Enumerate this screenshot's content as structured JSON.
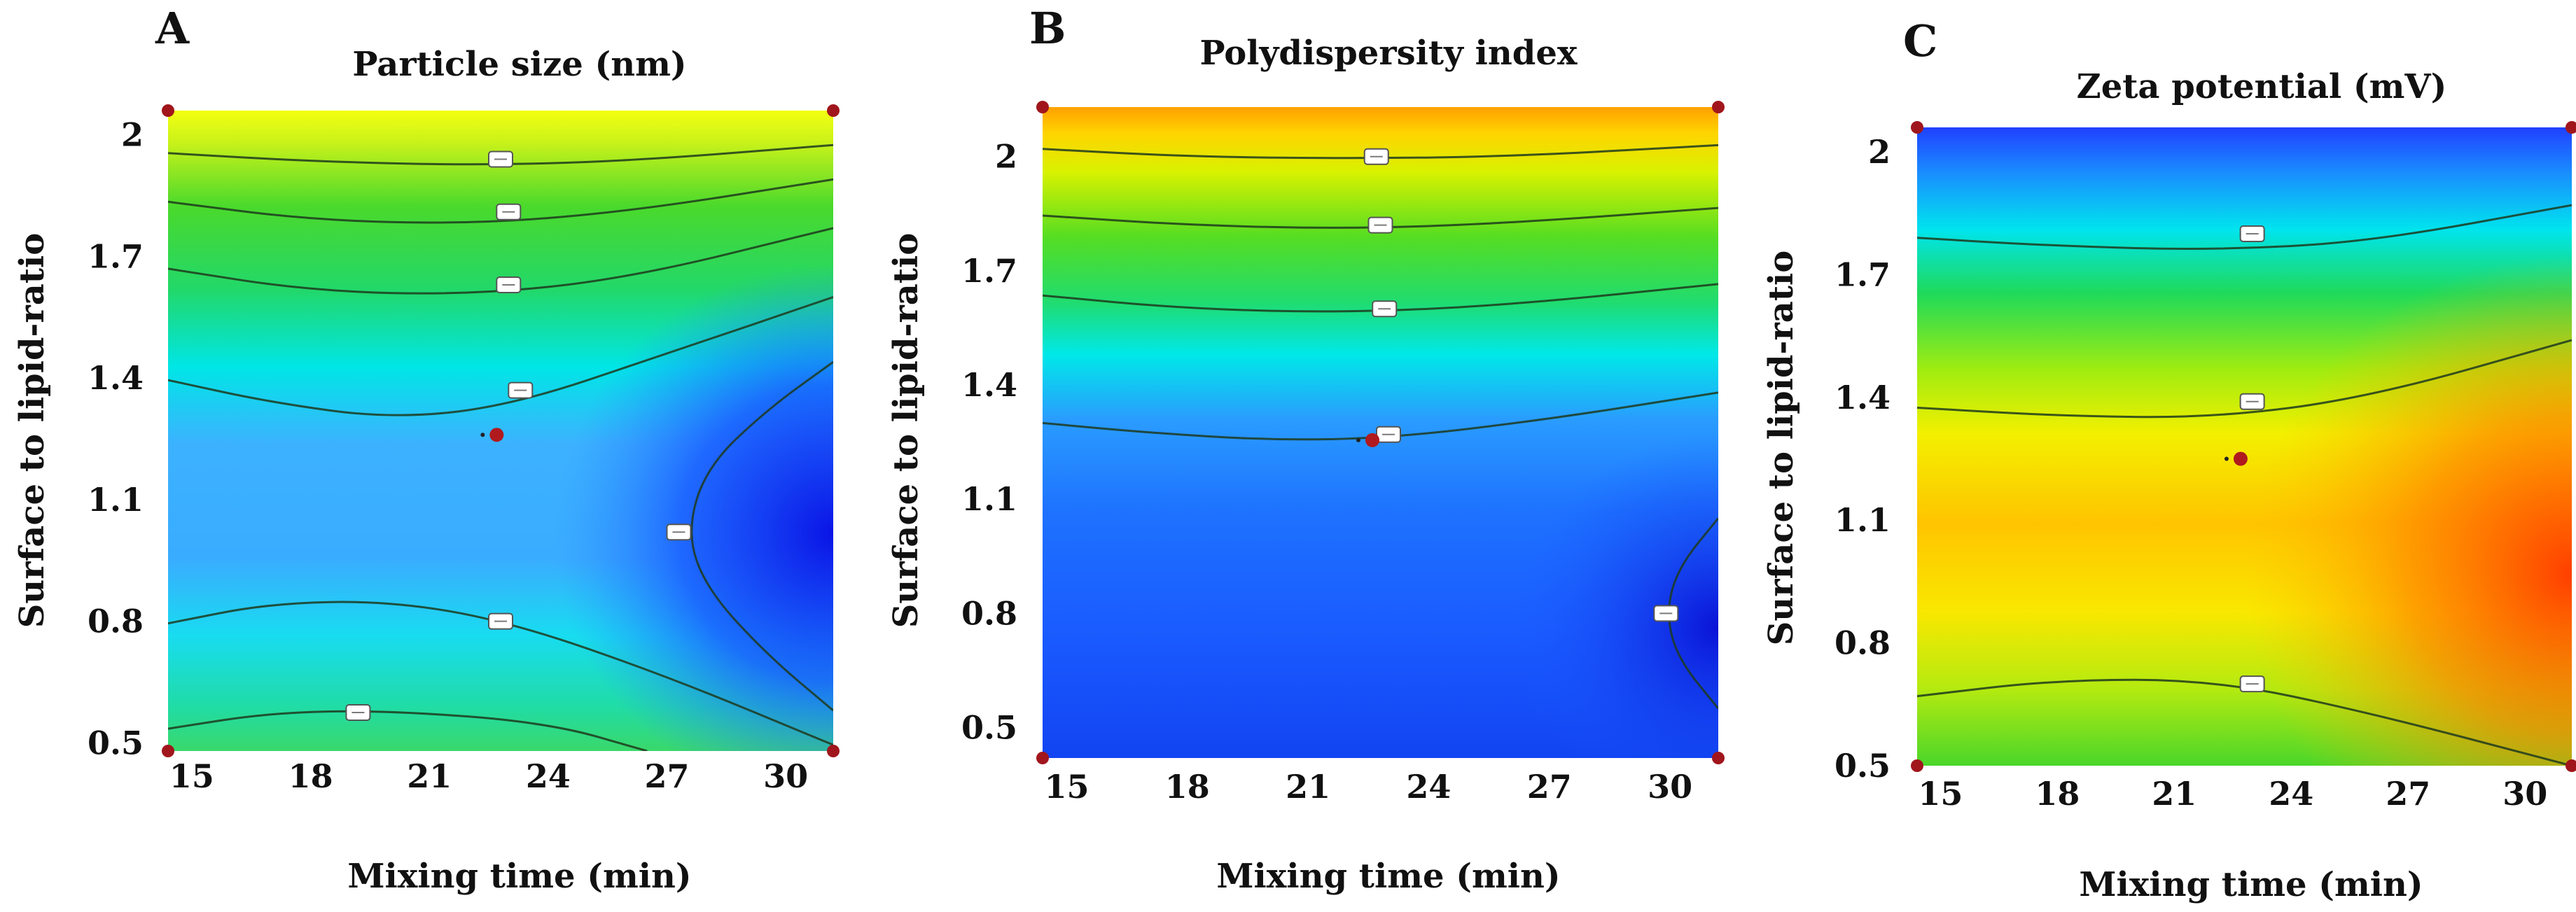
{
  "colors": {
    "red": "#ff2a00",
    "orange": "#ff8a00",
    "yellow": "#fff000",
    "green": "#2bd42b",
    "cyan": "#00ecec",
    "lightblue": "#3fb0ff",
    "blue": "#1a6aff",
    "darkblue": "#0f14e6",
    "point": "#b01a1f"
  },
  "chart_data": [
    {
      "type": "heatmap",
      "panel": "A",
      "title": "Particle size (nm)",
      "xlabel": "Mixing time (min)",
      "ylabel": "Surface to lipid-ratio",
      "xlim": [
        14.4,
        31.2
      ],
      "ylim": [
        0.48,
        2.06
      ],
      "x_ticks": [
        "15",
        "18",
        "21",
        "24",
        "27",
        "30"
      ],
      "y_ticks": [
        "0.5",
        "0.8",
        "1.1",
        "1.4",
        "1.7",
        "2"
      ],
      "contours": [
        {
          "points": [
            [
              14.4,
              0.535
            ],
            [
              17,
              0.575
            ],
            [
              20,
              0.58
            ],
            [
              24,
              0.55
            ],
            [
              26.5,
              0.48
            ]
          ],
          "label_at": [
            19.2,
            0.575
          ]
        },
        {
          "points": [
            [
              14.4,
              0.795
            ],
            [
              17,
              0.845
            ],
            [
              20,
              0.85
            ],
            [
              23,
              0.8
            ],
            [
              27,
              0.665
            ],
            [
              31.2,
              0.495
            ]
          ],
          "label_at": [
            22.8,
            0.8
          ]
        },
        {
          "points": [
            [
              31.2,
              0.58
            ],
            [
              29.5,
              0.72
            ],
            [
              28,
              0.88
            ],
            [
              27.5,
              1.02
            ],
            [
              28,
              1.18
            ],
            [
              29.5,
              1.32
            ],
            [
              31.2,
              1.44
            ]
          ],
          "label_at": [
            27.3,
            1.02
          ]
        },
        {
          "points": [
            [
              14.4,
              1.395
            ],
            [
              17,
              1.34
            ],
            [
              20,
              1.3
            ],
            [
              23,
              1.33
            ],
            [
              27,
              1.46
            ],
            [
              31.2,
              1.6
            ]
          ],
          "label_at": [
            23.3,
            1.37
          ]
        },
        {
          "points": [
            [
              14.4,
              1.67
            ],
            [
              18,
              1.615
            ],
            [
              22,
              1.605
            ],
            [
              26,
              1.645
            ],
            [
              31.2,
              1.77
            ]
          ],
          "label_at": [
            23.0,
            1.63
          ]
        },
        {
          "points": [
            [
              14.4,
              1.835
            ],
            [
              18,
              1.79
            ],
            [
              22,
              1.78
            ],
            [
              26,
              1.81
            ],
            [
              31.2,
              1.89
            ]
          ],
          "label_at": [
            23.0,
            1.81
          ]
        },
        {
          "points": [
            [
              14.4,
              1.955
            ],
            [
              18,
              1.935
            ],
            [
              22,
              1.925
            ],
            [
              26,
              1.935
            ],
            [
              31.2,
              1.975
            ]
          ],
          "label_at": [
            22.8,
            1.94
          ]
        }
      ],
      "center_point": [
        22.7,
        1.26
      ]
    },
    {
      "type": "heatmap",
      "panel": "B",
      "title": "Polydispersity index",
      "xlabel": "Mixing time (min)",
      "ylabel": "Surface to lipid-ratio",
      "xlim": [
        14.4,
        31.2
      ],
      "ylim": [
        0.42,
        2.13
      ],
      "x_ticks": [
        "15",
        "18",
        "21",
        "24",
        "27",
        "30"
      ],
      "y_ticks": [
        "0.5",
        "0.8",
        "1.1",
        "1.4",
        "1.7",
        "2"
      ],
      "contours": [
        {
          "points": [
            [
              14.4,
              1.3
            ],
            [
              17,
              1.275
            ],
            [
              20,
              1.255
            ],
            [
              23,
              1.26
            ],
            [
              27,
              1.31
            ],
            [
              31.2,
              1.38
            ]
          ],
          "label_at": [
            23.0,
            1.27
          ]
        },
        {
          "points": [
            [
              14.4,
              1.635
            ],
            [
              18,
              1.6
            ],
            [
              22,
              1.59
            ],
            [
              26,
              1.61
            ],
            [
              31.2,
              1.665
            ]
          ],
          "label_at": [
            22.9,
            1.6
          ]
        },
        {
          "points": [
            [
              14.4,
              1.845
            ],
            [
              18,
              1.82
            ],
            [
              22,
              1.81
            ],
            [
              26,
              1.825
            ],
            [
              31.2,
              1.865
            ]
          ],
          "label_at": [
            22.8,
            1.82
          ]
        },
        {
          "points": [
            [
              14.4,
              2.02
            ],
            [
              18,
              2.0
            ],
            [
              22,
              1.995
            ],
            [
              26,
              2.0
            ],
            [
              31.2,
              2.03
            ]
          ],
          "label_at": [
            22.7,
            2.0
          ]
        },
        {
          "points": [
            [
              31.2,
              0.55
            ],
            [
              30.2,
              0.68
            ],
            [
              29.9,
              0.8
            ],
            [
              30.2,
              0.92
            ],
            [
              31.2,
              1.05
            ]
          ],
          "label_at": [
            29.9,
            0.8
          ]
        }
      ],
      "center_point": [
        22.6,
        1.255
      ]
    },
    {
      "type": "heatmap",
      "panel": "C",
      "title": "Zeta potential (mV)",
      "xlabel": "Mixing time (min)",
      "ylabel": "Surface to lipid-ratio",
      "xlim": [
        14.4,
        31.2
      ],
      "ylim": [
        0.5,
        2.06
      ],
      "x_ticks": [
        "15",
        "18",
        "21",
        "24",
        "27",
        "30"
      ],
      "y_ticks": [
        "0.5",
        "0.8",
        "1.1",
        "1.4",
        "1.7",
        "2"
      ],
      "contours": [
        {
          "points": [
            [
              14.4,
              1.79
            ],
            [
              18,
              1.77
            ],
            [
              22,
              1.76
            ],
            [
              26,
              1.78
            ],
            [
              31.2,
              1.87
            ]
          ],
          "label_at": [
            23.0,
            1.8
          ]
        },
        {
          "points": [
            [
              14.4,
              1.375
            ],
            [
              18,
              1.355
            ],
            [
              22,
              1.35
            ],
            [
              26,
              1.4
            ],
            [
              31.2,
              1.54
            ]
          ],
          "label_at": [
            23.0,
            1.39
          ]
        },
        {
          "points": [
            [
              14.4,
              0.67
            ],
            [
              18,
              0.71
            ],
            [
              22,
              0.71
            ],
            [
              26,
              0.63
            ],
            [
              31.2,
              0.5
            ]
          ],
          "label_at": [
            23.0,
            0.7
          ]
        }
      ],
      "center_point": [
        22.7,
        1.25
      ]
    }
  ]
}
